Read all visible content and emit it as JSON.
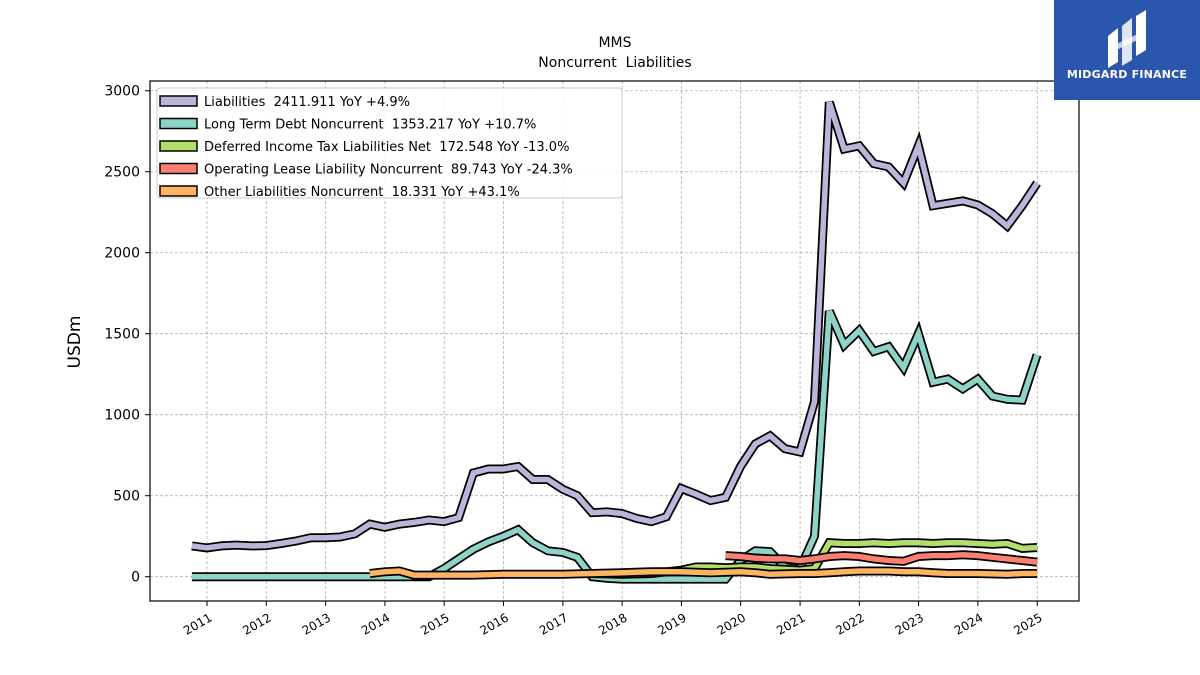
{
  "brand": {
    "name": "MIDGARD FINANCE",
    "bg_color": "#2a56ad",
    "icon": "midgard-logo-icon"
  },
  "chart_data": {
    "type": "line",
    "title": "MMS",
    "subtitle": "Noncurrent  Liabilities",
    "xlabel": "",
    "ylabel": "USDm",
    "ylim": [
      -150,
      3060
    ],
    "xlim": [
      "2010-01-15",
      "2025-09-15"
    ],
    "yticks": [
      0,
      500,
      1000,
      1500,
      2000,
      2500,
      3000
    ],
    "xticks": [
      "2011",
      "2012",
      "2013",
      "2014",
      "2015",
      "2016",
      "2017",
      "2018",
      "2019",
      "2020",
      "2021",
      "2022",
      "2023",
      "2024",
      "2025"
    ],
    "grid": true,
    "legend_position": "top-left",
    "series": [
      {
        "name": "Liabilities",
        "legend": "Liabilities  2411.911 YoY +4.9%",
        "color": "#bcb5d9",
        "points": [
          [
            "2010-09-30",
            190
          ],
          [
            "2010-12-31",
            178
          ],
          [
            "2011-03-31",
            190
          ],
          [
            "2011-06-30",
            195
          ],
          [
            "2011-09-30",
            190
          ],
          [
            "2011-12-31",
            192
          ],
          [
            "2012-03-31",
            205
          ],
          [
            "2012-06-30",
            220
          ],
          [
            "2012-09-30",
            240
          ],
          [
            "2012-12-31",
            240
          ],
          [
            "2013-03-31",
            245
          ],
          [
            "2013-06-30",
            265
          ],
          [
            "2013-09-30",
            325
          ],
          [
            "2013-12-31",
            305
          ],
          [
            "2014-03-31",
            325
          ],
          [
            "2014-06-30",
            335
          ],
          [
            "2014-09-30",
            350
          ],
          [
            "2014-12-31",
            340
          ],
          [
            "2015-03-31",
            365
          ],
          [
            "2015-06-30",
            640
          ],
          [
            "2015-09-30",
            665
          ],
          [
            "2015-12-31",
            665
          ],
          [
            "2016-03-31",
            680
          ],
          [
            "2016-06-30",
            600
          ],
          [
            "2016-09-30",
            600
          ],
          [
            "2016-12-31",
            540
          ],
          [
            "2017-03-31",
            500
          ],
          [
            "2017-06-30",
            395
          ],
          [
            "2017-09-30",
            400
          ],
          [
            "2017-12-31",
            390
          ],
          [
            "2018-03-31",
            360
          ],
          [
            "2018-06-30",
            340
          ],
          [
            "2018-09-30",
            370
          ],
          [
            "2018-12-31",
            545
          ],
          [
            "2019-03-31",
            510
          ],
          [
            "2019-06-30",
            470
          ],
          [
            "2019-09-30",
            490
          ],
          [
            "2019-12-31",
            680
          ],
          [
            "2020-03-31",
            820
          ],
          [
            "2020-06-30",
            870
          ],
          [
            "2020-09-30",
            790
          ],
          [
            "2020-12-31",
            770
          ],
          [
            "2021-03-31",
            1080
          ],
          [
            "2021-06-30",
            2930
          ],
          [
            "2021-09-30",
            2640
          ],
          [
            "2021-12-31",
            2660
          ],
          [
            "2022-03-31",
            2550
          ],
          [
            "2022-06-30",
            2530
          ],
          [
            "2022-09-30",
            2430
          ],
          [
            "2022-12-31",
            2660
          ],
          [
            "2023-03-31",
            2290
          ],
          [
            "2023-06-30",
            2305
          ],
          [
            "2023-09-30",
            2320
          ],
          [
            "2023-12-31",
            2295
          ],
          [
            "2024-03-31",
            2240
          ],
          [
            "2024-06-30",
            2165
          ],
          [
            "2024-09-30",
            2290
          ],
          [
            "2024-12-31",
            2430
          ]
        ]
      },
      {
        "name": "Long Term Debt Noncurrent",
        "legend": "Long Term Debt Noncurrent  1353.217 YoY +10.7%",
        "color": "#8dd3c7",
        "points": [
          [
            "2010-09-30",
            0
          ],
          [
            "2013-12-31",
            0
          ],
          [
            "2014-09-30",
            0
          ],
          [
            "2014-12-31",
            50
          ],
          [
            "2015-03-31",
            110
          ],
          [
            "2015-06-30",
            170
          ],
          [
            "2015-09-30",
            215
          ],
          [
            "2015-12-31",
            250
          ],
          [
            "2016-03-31",
            290
          ],
          [
            "2016-06-30",
            210
          ],
          [
            "2016-09-30",
            160
          ],
          [
            "2016-12-31",
            150
          ],
          [
            "2017-03-31",
            120
          ],
          [
            "2017-06-30",
            0
          ],
          [
            "2017-09-30",
            -10
          ],
          [
            "2017-12-31",
            -15
          ],
          [
            "2018-03-31",
            -15
          ],
          [
            "2018-06-30",
            -15
          ],
          [
            "2018-09-30",
            -15
          ],
          [
            "2018-12-31",
            -15
          ],
          [
            "2019-03-31",
            -15
          ],
          [
            "2019-06-30",
            -15
          ],
          [
            "2019-09-30",
            -15
          ],
          [
            "2019-12-31",
            100
          ],
          [
            "2020-03-31",
            160
          ],
          [
            "2020-06-30",
            155
          ],
          [
            "2020-09-30",
            60
          ],
          [
            "2020-12-31",
            50
          ],
          [
            "2021-03-31",
            250
          ],
          [
            "2021-06-30",
            1640
          ],
          [
            "2021-09-30",
            1430
          ],
          [
            "2021-12-31",
            1520
          ],
          [
            "2022-03-31",
            1390
          ],
          [
            "2022-06-30",
            1420
          ],
          [
            "2022-09-30",
            1290
          ],
          [
            "2022-12-31",
            1500
          ],
          [
            "2023-03-31",
            1200
          ],
          [
            "2023-06-30",
            1220
          ],
          [
            "2023-09-30",
            1160
          ],
          [
            "2023-12-31",
            1220
          ],
          [
            "2024-03-31",
            1115
          ],
          [
            "2024-06-30",
            1095
          ],
          [
            "2024-09-30",
            1090
          ],
          [
            "2024-12-31",
            1370
          ]
        ]
      },
      {
        "name": "Deferred Income Tax Liabilities Net",
        "legend": "Deferred Income Tax Liabilities Net  172.548 YoY -13.0%",
        "color": "#b3de69",
        "points": [
          [
            "2017-06-30",
            20
          ],
          [
            "2017-12-31",
            15
          ],
          [
            "2018-06-30",
            20
          ],
          [
            "2018-12-31",
            40
          ],
          [
            "2019-03-31",
            60
          ],
          [
            "2019-06-30",
            60
          ],
          [
            "2019-09-30",
            55
          ],
          [
            "2019-12-31",
            60
          ],
          [
            "2020-03-31",
            60
          ],
          [
            "2020-06-30",
            50
          ],
          [
            "2020-09-30",
            45
          ],
          [
            "2020-12-31",
            40
          ],
          [
            "2021-03-31",
            50
          ],
          [
            "2021-06-30",
            210
          ],
          [
            "2021-09-30",
            205
          ],
          [
            "2021-12-31",
            205
          ],
          [
            "2022-03-31",
            210
          ],
          [
            "2022-06-30",
            205
          ],
          [
            "2022-09-30",
            210
          ],
          [
            "2022-12-31",
            210
          ],
          [
            "2023-03-31",
            205
          ],
          [
            "2023-06-30",
            210
          ],
          [
            "2023-09-30",
            210
          ],
          [
            "2023-12-31",
            205
          ],
          [
            "2024-03-31",
            200
          ],
          [
            "2024-06-30",
            205
          ],
          [
            "2024-09-30",
            175
          ],
          [
            "2024-12-31",
            180
          ]
        ]
      },
      {
        "name": "Operating Lease Liability Noncurrent",
        "legend": "Operating Lease Liability Noncurrent  89.743 YoY -24.3%",
        "color": "#fb8072",
        "points": [
          [
            "2019-09-30",
            130
          ],
          [
            "2019-12-31",
            125
          ],
          [
            "2020-03-31",
            115
          ],
          [
            "2020-06-30",
            110
          ],
          [
            "2020-09-30",
            110
          ],
          [
            "2020-12-31",
            100
          ],
          [
            "2021-03-31",
            110
          ],
          [
            "2021-06-30",
            125
          ],
          [
            "2021-09-30",
            130
          ],
          [
            "2021-12-31",
            125
          ],
          [
            "2022-03-31",
            110
          ],
          [
            "2022-06-30",
            100
          ],
          [
            "2022-09-30",
            95
          ],
          [
            "2022-12-31",
            125
          ],
          [
            "2023-03-31",
            130
          ],
          [
            "2023-06-30",
            130
          ],
          [
            "2023-09-30",
            135
          ],
          [
            "2023-12-31",
            130
          ],
          [
            "2024-03-31",
            120
          ],
          [
            "2024-06-30",
            110
          ],
          [
            "2024-09-30",
            100
          ],
          [
            "2024-12-31",
            90
          ]
        ]
      },
      {
        "name": "Other Liabilities Noncurrent",
        "legend": "Other Liabilities Noncurrent  18.331 YoY +43.1%",
        "color": "#fdb462",
        "points": [
          [
            "2013-09-30",
            20
          ],
          [
            "2013-12-31",
            30
          ],
          [
            "2014-03-31",
            35
          ],
          [
            "2014-06-30",
            10
          ],
          [
            "2014-09-30",
            10
          ],
          [
            "2014-12-31",
            10
          ],
          [
            "2015-06-30",
            10
          ],
          [
            "2015-12-31",
            15
          ],
          [
            "2016-06-30",
            15
          ],
          [
            "2016-12-31",
            15
          ],
          [
            "2017-06-30",
            20
          ],
          [
            "2017-12-31",
            25
          ],
          [
            "2018-06-30",
            30
          ],
          [
            "2018-12-31",
            30
          ],
          [
            "2019-06-30",
            25
          ],
          [
            "2019-12-31",
            30
          ],
          [
            "2020-03-31",
            25
          ],
          [
            "2020-06-30",
            15
          ],
          [
            "2020-12-31",
            20
          ],
          [
            "2021-03-31",
            20
          ],
          [
            "2021-06-30",
            25
          ],
          [
            "2021-09-30",
            30
          ],
          [
            "2021-12-31",
            35
          ],
          [
            "2022-06-30",
            35
          ],
          [
            "2022-09-30",
            30
          ],
          [
            "2022-12-31",
            30
          ],
          [
            "2023-03-31",
            25
          ],
          [
            "2023-06-30",
            20
          ],
          [
            "2023-12-31",
            20
          ],
          [
            "2024-06-30",
            15
          ],
          [
            "2024-09-30",
            20
          ],
          [
            "2024-12-31",
            20
          ]
        ]
      }
    ]
  }
}
